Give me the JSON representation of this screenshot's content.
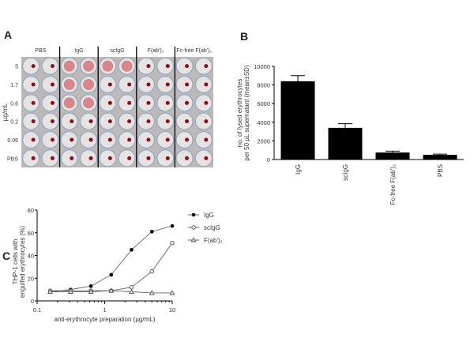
{
  "panels": {
    "a": "A",
    "b": "B",
    "c": "C"
  },
  "plate": {
    "columns": [
      "PBS",
      "IgG",
      "scIgG",
      "F(ab')2",
      "Fc-free F(ab')2"
    ],
    "rows": [
      "5",
      "1.7",
      "0.6",
      "0.2",
      "0.06",
      "PBS"
    ],
    "row_axis_label": "µg/mL",
    "lysed_wells": {
      "IgG": [
        "5",
        "1.7",
        "0.6"
      ],
      "scIgG": [
        "5"
      ]
    },
    "colors": {
      "plate": "#bdb9b8",
      "dot": "#8a0d1a",
      "lysed": "#d9868a"
    }
  },
  "chart_data": [
    {
      "panel": "B",
      "type": "bar",
      "categories": [
        "IgG",
        "scIgG",
        "Fc-free F(ab')2",
        "PBS"
      ],
      "values": [
        8400,
        3400,
        750,
        500
      ],
      "errors": [
        600,
        450,
        150,
        80
      ],
      "ylabel_lines": [
        "no. of lysed erythrocytes",
        "per 50 µL supernatant (mean±SD)"
      ],
      "ylim": [
        0,
        10000
      ],
      "yticks": [
        0,
        2000,
        4000,
        6000,
        8000,
        10000
      ],
      "bar_color": "#000000"
    },
    {
      "panel": "C",
      "type": "line",
      "xscale": "log",
      "xlim": [
        0.1,
        10
      ],
      "xticks": [
        "0.1",
        "1",
        "10"
      ],
      "ylim": [
        0,
        80
      ],
      "yticks": [
        0,
        20,
        40,
        60,
        80
      ],
      "xlabel": "anti-erythrocyte preparation (µg/mL)",
      "ylabel_lines": [
        "THP-1 cells with",
        "engulfed erythrocytes (%)"
      ],
      "legend": "top-right",
      "x": [
        0.156,
        0.3125,
        0.625,
        1.25,
        2.5,
        5,
        10
      ],
      "series": [
        {
          "name": "IgG",
          "marker": "filled-circle",
          "values": [
            8,
            10,
            13,
            23,
            45,
            61,
            66
          ]
        },
        {
          "name": "scIgG",
          "marker": "open-circle",
          "values": [
            9,
            9,
            9,
            9,
            12,
            26,
            51
          ]
        },
        {
          "name": "F(ab')2",
          "marker": "open-triangle",
          "values": [
            8,
            8,
            8,
            9,
            8,
            7,
            7
          ]
        }
      ]
    }
  ]
}
